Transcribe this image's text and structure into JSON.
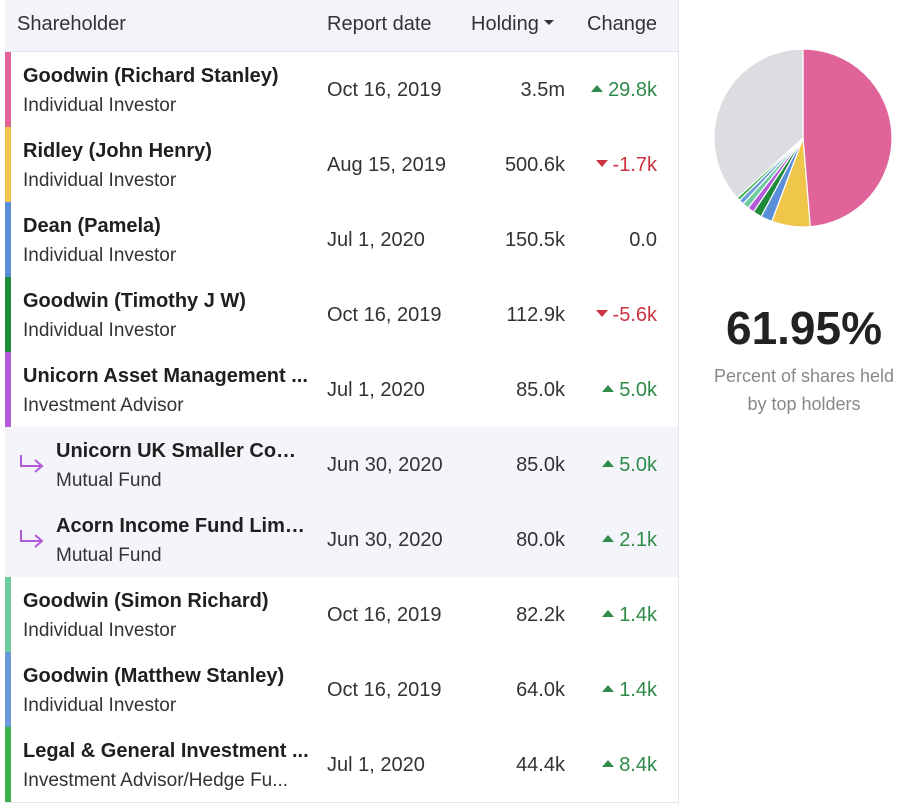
{
  "headers": {
    "shareholder": "Shareholder",
    "report_date": "Report date",
    "holding": "Holding",
    "change": "Change"
  },
  "rows": [
    {
      "name": "Goodwin (Richard Stanley)",
      "type": "Individual Investor",
      "date": "Oct 16, 2019",
      "holding": "3.5m",
      "change": "29.8k",
      "dir": "up",
      "color": "#e0649a",
      "sub": false
    },
    {
      "name": "Ridley (John Henry)",
      "type": "Individual Investor",
      "date": "Aug 15, 2019",
      "holding": "500.6k",
      "change": "-1.7k",
      "dir": "down",
      "color": "#f0c64a",
      "sub": false
    },
    {
      "name": "Dean (Pamela)",
      "type": "Individual Investor",
      "date": "Jul 1, 2020",
      "holding": "150.5k",
      "change": "0.0",
      "dir": "flat",
      "color": "#5a8ed8",
      "sub": false
    },
    {
      "name": "Goodwin (Timothy J W)",
      "type": "Individual Investor",
      "date": "Oct 16, 2019",
      "holding": "112.9k",
      "change": "-5.6k",
      "dir": "down",
      "color": "#1e8a3a",
      "sub": false
    },
    {
      "name": "Unicorn Asset Management ...",
      "type": "Investment Advisor",
      "date": "Jul 1, 2020",
      "holding": "85.0k",
      "change": "5.0k",
      "dir": "up",
      "color": "#b25ad8",
      "sub": false
    },
    {
      "name": "Unicorn UK Smaller Com...",
      "type": "Mutual Fund",
      "date": "Jun 30, 2020",
      "holding": "85.0k",
      "change": "5.0k",
      "dir": "up",
      "color": "#b25ad8",
      "sub": true
    },
    {
      "name": "Acorn Income Fund Limi...",
      "type": "Mutual Fund",
      "date": "Jun 30, 2020",
      "holding": "80.0k",
      "change": "2.1k",
      "dir": "up",
      "color": "#b25ad8",
      "sub": true
    },
    {
      "name": "Goodwin (Simon Richard)",
      "type": "Individual Investor",
      "date": "Oct 16, 2019",
      "holding": "82.2k",
      "change": "1.4k",
      "dir": "up",
      "color": "#6fcca0",
      "sub": false
    },
    {
      "name": "Goodwin (Matthew Stanley)",
      "type": "Individual Investor",
      "date": "Oct 16, 2019",
      "holding": "64.0k",
      "change": "1.4k",
      "dir": "up",
      "color": "#6a9ad8",
      "sub": false
    },
    {
      "name": "Legal & General Investment ...",
      "type": "Investment Advisor/Hedge Fu...",
      "date": "Jul 1, 2020",
      "holding": "44.4k",
      "change": "8.4k",
      "dir": "up",
      "color": "#3ab04a",
      "sub": false
    }
  ],
  "summary": {
    "percent": "61.95%",
    "caption": "Percent of shares held by top holders"
  },
  "pie": {
    "slices": [
      {
        "label": "Goodwin (Richard Stanley)",
        "value": 48.7,
        "color": "#e0649a"
      },
      {
        "label": "Ridley (John Henry)",
        "value": 7.0,
        "color": "#f0c64a"
      },
      {
        "label": "Dean (Pamela)",
        "value": 2.1,
        "color": "#5a8ed8"
      },
      {
        "label": "Goodwin (Timothy J W)",
        "value": 1.6,
        "color": "#1e8a3a"
      },
      {
        "label": "Unicorn Asset Management",
        "value": 1.2,
        "color": "#b25ad8"
      },
      {
        "label": "Goodwin (Simon Richard)",
        "value": 1.15,
        "color": "#6fcca0"
      },
      {
        "label": "Goodwin (Matthew Stanley)",
        "value": 0.9,
        "color": "#6a9ad8"
      },
      {
        "label": "Legal & General Investment",
        "value": 0.62,
        "color": "#3ab04a"
      },
      {
        "label": "Other",
        "value": 36.73,
        "color": "#dcdde1"
      }
    ],
    "separator_color": "#ffffff"
  }
}
